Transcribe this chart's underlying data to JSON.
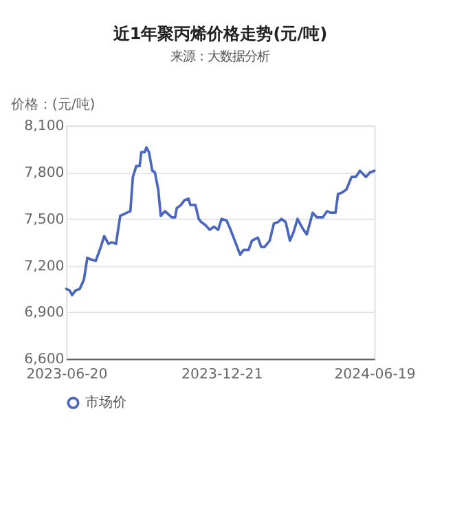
{
  "chart_data": {
    "type": "line",
    "title": "近1年聚丙烯价格走势(元/吨)",
    "subtitle": "来源：大数据分析",
    "ylabel": "价格：(元/吨)",
    "x": [
      "2023-06-20",
      "2023-06-24",
      "2023-06-27",
      "2023-07-01",
      "2023-07-06",
      "2023-07-11",
      "2023-07-15",
      "2023-07-19",
      "2023-07-25",
      "2023-07-31",
      "2023-08-04",
      "2023-08-09",
      "2023-08-13",
      "2023-08-18",
      "2023-08-23",
      "2023-08-31",
      "2023-09-04",
      "2023-09-07",
      "2023-09-11",
      "2023-09-15",
      "2023-09-17",
      "2023-09-21",
      "2023-09-23",
      "2023-09-26",
      "2023-09-30",
      "2023-10-03",
      "2023-10-07",
      "2023-10-10",
      "2023-10-15",
      "2023-10-23",
      "2023-10-27",
      "2023-10-29",
      "2023-11-03",
      "2023-11-07",
      "2023-11-12",
      "2023-11-14",
      "2023-11-20",
      "2023-11-24",
      "2023-11-27",
      "2023-12-02",
      "2023-12-07",
      "2023-12-12",
      "2023-12-17",
      "2023-12-21",
      "2023-12-27",
      "2023-12-31",
      "2024-01-05",
      "2024-01-12",
      "2024-01-16",
      "2024-01-22",
      "2024-01-26",
      "2024-02-02",
      "2024-02-06",
      "2024-02-10",
      "2024-02-16",
      "2024-02-21",
      "2024-02-26",
      "2024-03-01",
      "2024-03-06",
      "2024-03-11",
      "2024-03-15",
      "2024-03-20",
      "2024-03-26",
      "2024-03-31",
      "2024-04-07",
      "2024-04-12",
      "2024-04-19",
      "2024-04-24",
      "2024-04-28",
      "2024-05-04",
      "2024-05-07",
      "2024-05-12",
      "2024-05-17",
      "2024-05-23",
      "2024-05-28",
      "2024-06-02",
      "2024-06-09",
      "2024-06-14",
      "2024-06-19"
    ],
    "series": [
      {
        "name": "市场价",
        "color": "#4a67bd",
        "values": [
          7050,
          7040,
          7010,
          7040,
          7050,
          7110,
          7250,
          7240,
          7230,
          7320,
          7390,
          7340,
          7350,
          7340,
          7520,
          7540,
          7550,
          7770,
          7840,
          7840,
          7930,
          7930,
          7960,
          7930,
          7810,
          7800,
          7690,
          7520,
          7550,
          7510,
          7510,
          7570,
          7590,
          7620,
          7630,
          7590,
          7590,
          7500,
          7480,
          7460,
          7430,
          7450,
          7430,
          7500,
          7490,
          7440,
          7370,
          7270,
          7300,
          7300,
          7360,
          7380,
          7320,
          7320,
          7360,
          7470,
          7480,
          7500,
          7480,
          7360,
          7410,
          7500,
          7440,
          7400,
          7540,
          7510,
          7510,
          7550,
          7540,
          7540,
          7660,
          7670,
          7690,
          7770,
          7770,
          7810,
          7770,
          7800,
          7810
        ]
      }
    ],
    "xlim": [
      "2023-06-20",
      "2024-06-19"
    ],
    "xticks": [
      "2023-06-20",
      "2023-12-21",
      "2024-06-19"
    ],
    "ylim": [
      6600,
      8100
    ],
    "yticks": [
      {
        "value": 6600,
        "label": "6,600"
      },
      {
        "value": 6900,
        "label": "6,900"
      },
      {
        "value": 7200,
        "label": "7,200"
      },
      {
        "value": 7500,
        "label": "7,500"
      },
      {
        "value": 7800,
        "label": "7,800"
      },
      {
        "value": 8100,
        "label": "8,100"
      }
    ],
    "grid": "y",
    "legend": "bottom",
    "marker": "none",
    "line_style": "solid"
  }
}
